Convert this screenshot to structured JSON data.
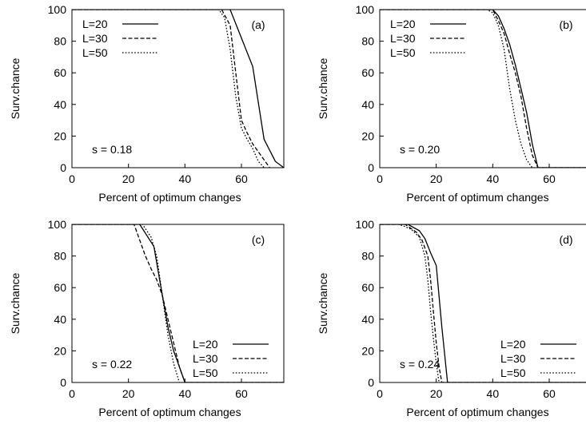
{
  "chart_data": [
    {
      "type": "line",
      "panel_label": "(a)",
      "annotation": "s = 0.18",
      "xlabel": "Percent of optimum changes",
      "ylabel": "Surv.chance",
      "xlim": [
        0,
        75
      ],
      "ylim": [
        0,
        100
      ],
      "xticks": [
        "0",
        "20",
        "40",
        "60"
      ],
      "yticks": [
        "0",
        "20",
        "40",
        "60",
        "80",
        "100"
      ],
      "legend_position": "top-left",
      "series": [
        {
          "name": "L=20",
          "style": "solid",
          "x": [
            0,
            56,
            60,
            64,
            68,
            72,
            75
          ],
          "y": [
            100,
            100,
            82,
            64,
            18,
            4,
            0
          ]
        },
        {
          "name": "L=30",
          "style": "dashed",
          "x": [
            0,
            53,
            56,
            58,
            60,
            62,
            64,
            66,
            68,
            70
          ],
          "y": [
            100,
            100,
            90,
            60,
            30,
            22,
            15,
            10,
            5,
            0
          ]
        },
        {
          "name": "L=50",
          "style": "dotted",
          "x": [
            0,
            52,
            54,
            56,
            58,
            60,
            62,
            64,
            66,
            68
          ],
          "y": [
            100,
            100,
            95,
            75,
            45,
            25,
            18,
            12,
            4,
            0
          ]
        }
      ]
    },
    {
      "type": "line",
      "panel_label": "(b)",
      "annotation": "s = 0.20",
      "xlabel": "Percent of optimum changes",
      "ylabel": "Surv.chance",
      "xlim": [
        0,
        75
      ],
      "ylim": [
        0,
        100
      ],
      "xticks": [
        "0",
        "20",
        "40",
        "60"
      ],
      "yticks": [
        "0",
        "20",
        "40",
        "60",
        "80",
        "100"
      ],
      "legend_position": "top-left",
      "series": [
        {
          "name": "L=20",
          "style": "solid",
          "x": [
            0,
            40,
            42,
            44,
            46,
            48,
            50,
            52,
            54,
            56,
            75
          ],
          "y": [
            100,
            100,
            96,
            88,
            78,
            65,
            50,
            35,
            15,
            0,
            0
          ]
        },
        {
          "name": "L=30",
          "style": "dashed",
          "x": [
            0,
            40,
            42,
            44,
            46,
            48,
            50,
            52,
            54,
            56,
            75
          ],
          "y": [
            100,
            100,
            93,
            85,
            72,
            60,
            45,
            25,
            8,
            0,
            0
          ]
        },
        {
          "name": "L=50",
          "style": "dotted",
          "x": [
            0,
            38,
            40,
            42,
            44,
            46,
            48,
            50,
            52,
            54,
            75
          ],
          "y": [
            100,
            100,
            98,
            90,
            75,
            50,
            30,
            15,
            5,
            0,
            0
          ]
        }
      ]
    },
    {
      "type": "line",
      "panel_label": "(c)",
      "annotation": "s = 0.22",
      "xlabel": "Percent of optimum changes",
      "ylabel": "Surv.chance",
      "xlim": [
        0,
        75
      ],
      "ylim": [
        0,
        100
      ],
      "xticks": [
        "0",
        "20",
        "40",
        "60"
      ],
      "yticks": [
        "0",
        "20",
        "40",
        "60",
        "80",
        "100"
      ],
      "legend_position": "bottom-right",
      "series": [
        {
          "name": "L=20",
          "style": "solid",
          "x": [
            0,
            24,
            29,
            32,
            34,
            36,
            38,
            40,
            75
          ],
          "y": [
            100,
            100,
            86,
            55,
            35,
            20,
            10,
            0,
            0
          ]
        },
        {
          "name": "L=30",
          "style": "dashed",
          "x": [
            0,
            22,
            24,
            26,
            28,
            30,
            32,
            34,
            36,
            38,
            40,
            75
          ],
          "y": [
            100,
            100,
            90,
            80,
            72,
            65,
            55,
            40,
            25,
            10,
            0,
            0
          ]
        },
        {
          "name": "L=50",
          "style": "dotted",
          "x": [
            0,
            25,
            28,
            30,
            32,
            34,
            36,
            38,
            75
          ],
          "y": [
            100,
            100,
            92,
            80,
            55,
            30,
            12,
            0,
            0
          ]
        }
      ]
    },
    {
      "type": "line",
      "panel_label": "(d)",
      "annotation": "s = 0.24",
      "xlabel": "Percent of optimum changes",
      "ylabel": "Surv.chance",
      "xlim": [
        0,
        75
      ],
      "ylim": [
        0,
        100
      ],
      "xticks": [
        "0",
        "20",
        "40",
        "60"
      ],
      "yticks": [
        "0",
        "20",
        "40",
        "60",
        "80",
        "100"
      ],
      "legend_position": "bottom-right",
      "series": [
        {
          "name": "L=20",
          "style": "solid",
          "x": [
            0,
            10,
            14,
            16,
            18,
            20,
            22,
            24,
            75
          ],
          "y": [
            100,
            100,
            96,
            91,
            82,
            74,
            35,
            0,
            0
          ]
        },
        {
          "name": "L=30",
          "style": "dashed",
          "x": [
            0,
            9,
            13,
            15,
            17,
            18,
            19,
            20,
            21,
            22,
            75
          ],
          "y": [
            100,
            100,
            95,
            90,
            80,
            65,
            45,
            25,
            10,
            0,
            0
          ]
        },
        {
          "name": "L=50",
          "style": "dotted",
          "x": [
            0,
            7,
            11,
            14,
            16,
            17,
            18,
            19,
            20,
            21,
            75
          ],
          "y": [
            100,
            100,
            97,
            92,
            80,
            65,
            45,
            28,
            12,
            0,
            0
          ]
        }
      ]
    }
  ]
}
